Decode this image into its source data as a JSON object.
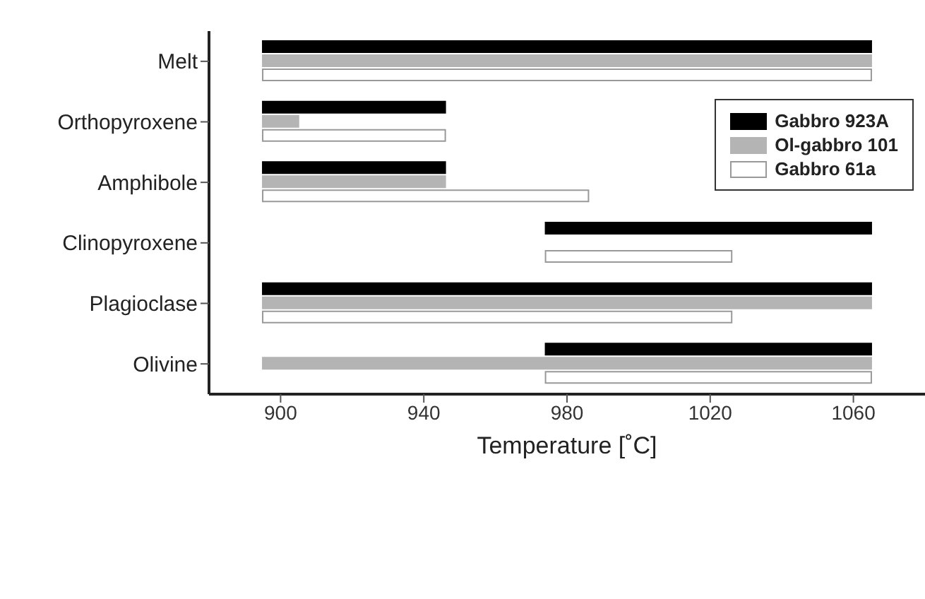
{
  "chart_data": {
    "type": "bar",
    "orientation": "horizontal",
    "xlabel": "Temperature [˚C]",
    "categories": [
      "Melt",
      "Orthopyroxene",
      "Amphibole",
      "Clinopyroxene",
      "Plagioclase",
      "Olivine"
    ],
    "series": [
      {
        "name": "Gabbro 923A",
        "color": "#000000",
        "base": [
          895,
          895,
          895,
          974,
          895,
          974
        ],
        "values": [
          170,
          51,
          51,
          91,
          170,
          91
        ]
      },
      {
        "name": "Ol-gabbro 101",
        "color": "#b4b4b4",
        "base": [
          895,
          895,
          895,
          null,
          895,
          895
        ],
        "values": [
          170,
          10,
          51,
          null,
          170,
          170
        ]
      },
      {
        "name": "Gabbro 61a",
        "color": "#ffffff",
        "base": [
          895,
          895,
          895,
          974,
          895,
          974
        ],
        "values": [
          170,
          51,
          91,
          52,
          131,
          91
        ]
      }
    ],
    "xlim": [
      880,
      1080
    ],
    "xticks": [
      900,
      940,
      980,
      1020,
      1060
    ],
    "grid": false,
    "legend": "top right"
  }
}
